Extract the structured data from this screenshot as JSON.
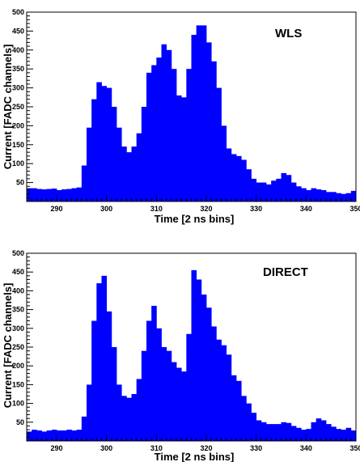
{
  "chart_data": [
    {
      "type": "bar",
      "title": "WLS",
      "xlabel": "Time [2 ns bins]",
      "ylabel": "Current [FADC channels]",
      "xlim": [
        284,
        350
      ],
      "ylim": [
        0,
        500
      ],
      "xticks": [
        290,
        300,
        310,
        320,
        330,
        340,
        350
      ],
      "xtick_labels": [
        "290",
        "300",
        "310",
        "320",
        "330",
        "340",
        "350"
      ],
      "yticks": [
        50,
        100,
        150,
        200,
        250,
        300,
        350,
        400,
        450,
        500
      ],
      "ytick_labels": [
        "50",
        "100",
        "150",
        "200",
        "250",
        "300",
        "350",
        "400",
        "450",
        "500"
      ],
      "bar_color": "#0000ff",
      "x": [
        284,
        285,
        286,
        287,
        288,
        289,
        290,
        291,
        292,
        293,
        294,
        295,
        296,
        297,
        298,
        299,
        300,
        301,
        302,
        303,
        304,
        305,
        306,
        307,
        308,
        309,
        310,
        311,
        312,
        313,
        314,
        315,
        316,
        317,
        318,
        319,
        320,
        321,
        322,
        323,
        324,
        325,
        326,
        327,
        328,
        329,
        330,
        331,
        332,
        333,
        334,
        335,
        336,
        337,
        338,
        339,
        340,
        341,
        342,
        343,
        344,
        345,
        346,
        347,
        348,
        349
      ],
      "values": [
        35,
        35,
        33,
        32,
        33,
        34,
        30,
        32,
        33,
        35,
        37,
        95,
        195,
        270,
        315,
        305,
        300,
        250,
        195,
        145,
        130,
        145,
        180,
        250,
        340,
        360,
        380,
        415,
        400,
        350,
        280,
        275,
        350,
        440,
        465,
        465,
        420,
        370,
        300,
        200,
        140,
        125,
        120,
        110,
        85,
        60,
        50,
        50,
        45,
        55,
        60,
        75,
        70,
        50,
        40,
        35,
        30,
        35,
        32,
        30,
        25,
        25,
        22,
        20,
        22,
        28
      ]
    },
    {
      "type": "bar",
      "title": "DIRECT",
      "xlabel": "Time [2 ns bins]",
      "ylabel": "Current [FADC channels]",
      "xlim": [
        284,
        350
      ],
      "ylim": [
        0,
        500
      ],
      "xticks": [
        290,
        300,
        310,
        320,
        330,
        340,
        350
      ],
      "xtick_labels": [
        "290",
        "300",
        "310",
        "320",
        "330",
        "340",
        "350"
      ],
      "yticks": [
        50,
        100,
        150,
        200,
        250,
        300,
        350,
        400,
        450,
        500
      ],
      "ytick_labels": [
        "50",
        "100",
        "150",
        "200",
        "250",
        "300",
        "350",
        "400",
        "450",
        "500"
      ],
      "bar_color": "#0000ff",
      "x": [
        284,
        285,
        286,
        287,
        288,
        289,
        290,
        291,
        292,
        293,
        294,
        295,
        296,
        297,
        298,
        299,
        300,
        301,
        302,
        303,
        304,
        305,
        306,
        307,
        308,
        309,
        310,
        311,
        312,
        313,
        314,
        315,
        316,
        317,
        318,
        319,
        320,
        321,
        322,
        323,
        324,
        325,
        326,
        327,
        328,
        329,
        330,
        331,
        332,
        333,
        334,
        335,
        336,
        337,
        338,
        339,
        340,
        341,
        342,
        343,
        344,
        345,
        346,
        347,
        348,
        349
      ],
      "values": [
        25,
        30,
        28,
        25,
        28,
        30,
        28,
        28,
        30,
        28,
        30,
        65,
        150,
        320,
        420,
        440,
        345,
        250,
        150,
        120,
        115,
        125,
        165,
        240,
        320,
        360,
        300,
        250,
        240,
        210,
        195,
        185,
        285,
        455,
        430,
        390,
        355,
        305,
        270,
        255,
        230,
        175,
        160,
        120,
        100,
        75,
        55,
        50,
        45,
        45,
        45,
        50,
        48,
        40,
        35,
        30,
        32,
        50,
        60,
        55,
        45,
        38,
        32,
        30,
        35,
        28
      ]
    }
  ]
}
